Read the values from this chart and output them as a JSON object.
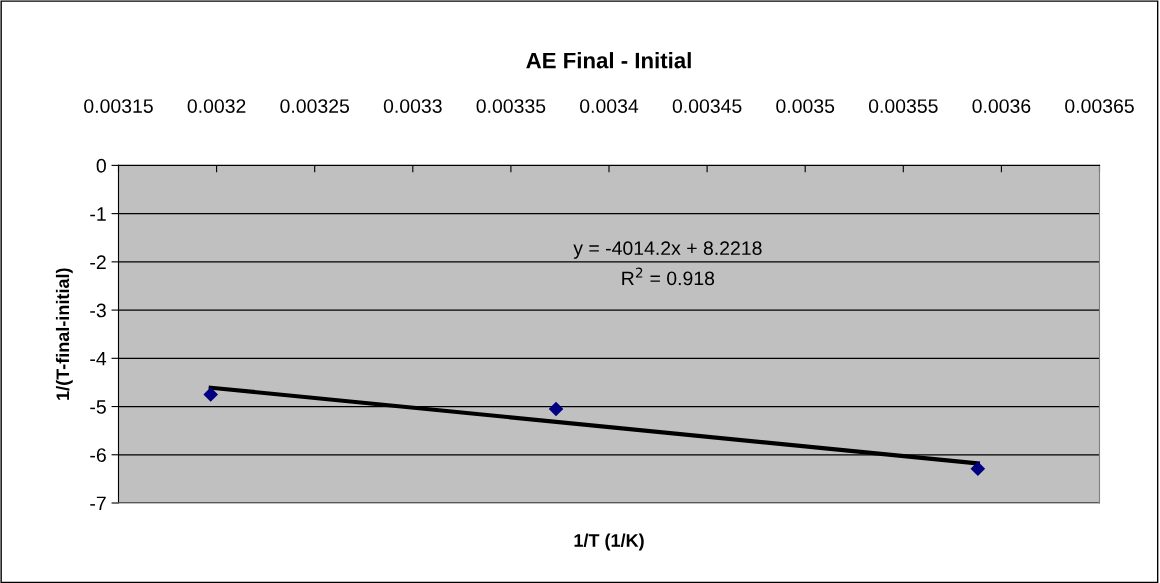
{
  "chart_data": {
    "type": "scatter",
    "title": "AE Final - Initial",
    "xlabel": "1/T (1/K)",
    "ylabel": "1/(T-final-initial)",
    "xlim": [
      0.00315,
      0.00365
    ],
    "xticks": [
      0.00315,
      0.0032,
      0.00325,
      0.0033,
      0.00335,
      0.0034,
      0.00345,
      0.0035,
      0.00355,
      0.0036,
      0.00365
    ],
    "ylim": [
      -7,
      0
    ],
    "yticks": [
      -7,
      -6,
      -5,
      -4,
      -3,
      -2,
      -1,
      0
    ],
    "grid": "y",
    "legend": false,
    "series": [
      {
        "color": "#000080",
        "marker": "diamond",
        "x": [
          0.003197,
          0.003373,
          0.003588
        ],
        "values": [
          -4.75,
          -5.05,
          -6.29
        ]
      },
      {
        "type": "line",
        "color": "#000000",
        "marker": "none",
        "x": [
          0.003197,
          0.003588
        ],
        "values": [
          -4.61,
          -6.18
        ]
      }
    ],
    "annotations": [
      "y = -4014.2x + 8.2218",
      "R$^{2}$ = 0.918"
    ]
  }
}
